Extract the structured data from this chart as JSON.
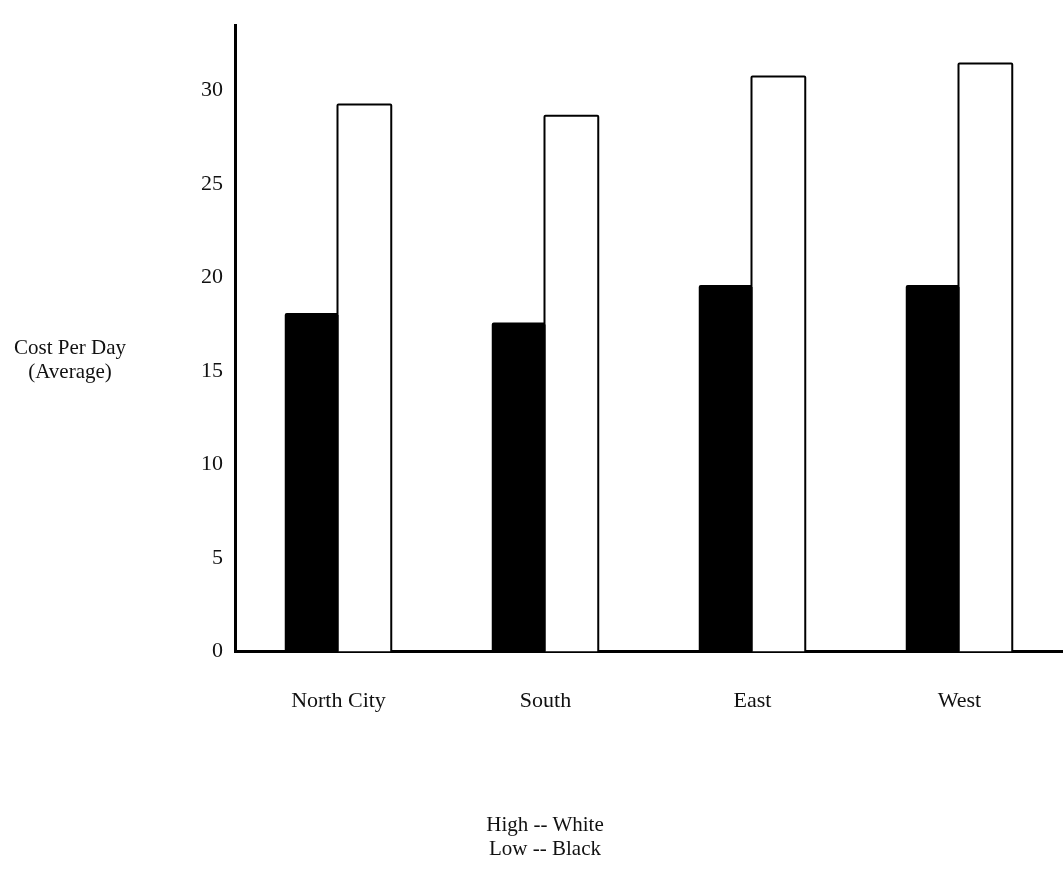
{
  "chart_data": {
    "type": "bar",
    "categories": [
      "North City",
      "South",
      "East",
      "West"
    ],
    "series": [
      {
        "color": "#000000",
        "values": [
          18,
          17.5,
          19.5,
          19.5
        ]
      },
      {
        "color": "#ffffff",
        "values": [
          29.2,
          28.6,
          30.7,
          31.4
        ]
      }
    ],
    "ylabel": "Cost Per Day (Average)",
    "ylim": [
      0,
      33.5
    ],
    "yticks": [
      0,
      5,
      10,
      15,
      20,
      25,
      30
    ],
    "annotations": [
      "High -- White",
      "Low -- Black"
    ]
  }
}
